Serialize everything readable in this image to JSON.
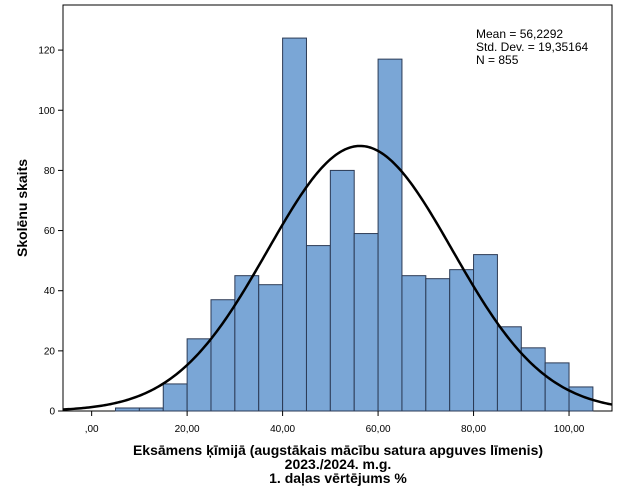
{
  "chart_data": {
    "type": "bar",
    "subtype": "histogram",
    "bin_width": 5,
    "bins": [
      {
        "start": 5,
        "end": 10,
        "count": 1
      },
      {
        "start": 10,
        "end": 15,
        "count": 1
      },
      {
        "start": 15,
        "end": 20,
        "count": 9
      },
      {
        "start": 20,
        "end": 25,
        "count": 24
      },
      {
        "start": 25,
        "end": 30,
        "count": 37
      },
      {
        "start": 30,
        "end": 35,
        "count": 45
      },
      {
        "start": 35,
        "end": 40,
        "count": 42
      },
      {
        "start": 40,
        "end": 45,
        "count": 124
      },
      {
        "start": 45,
        "end": 50,
        "count": 55
      },
      {
        "start": 50,
        "end": 55,
        "count": 80
      },
      {
        "start": 55,
        "end": 60,
        "count": 59
      },
      {
        "start": 60,
        "end": 65,
        "count": 117
      },
      {
        "start": 65,
        "end": 70,
        "count": 45
      },
      {
        "start": 70,
        "end": 75,
        "count": 44
      },
      {
        "start": 75,
        "end": 80,
        "count": 47
      },
      {
        "start": 80,
        "end": 85,
        "count": 52
      },
      {
        "start": 85,
        "end": 90,
        "count": 28
      },
      {
        "start": 90,
        "end": 95,
        "count": 21
      },
      {
        "start": 95,
        "end": 100,
        "count": 16
      },
      {
        "start": 100,
        "end": 105,
        "count": 8
      }
    ],
    "xlim": [
      -6,
      109
    ],
    "ylim": [
      0,
      135
    ],
    "x_ticks": [
      0,
      20,
      40,
      60,
      80,
      100
    ],
    "x_tick_labels": [
      ",00",
      "20,00",
      "40,00",
      "60,00",
      "80,00",
      "100,00"
    ],
    "y_ticks": [
      0,
      20,
      40,
      60,
      80,
      100,
      120
    ],
    "y_tick_labels": [
      "0",
      "20",
      "40",
      "60",
      "80",
      "100",
      "120"
    ],
    "xlabel_lines": [
      "Eksāmens ķīmijā (augstākais mācību satura apguves līmenis)",
      "2023./2024. m.g.",
      "1. daļas vērtējums %"
    ],
    "ylabel": "Skolēnu skaits",
    "normal_curve": {
      "mean": 56.2292,
      "std_dev": 19.35164,
      "n": 855
    },
    "stats_text": [
      "Mean = 56,2292",
      "Std. Dev. = 19,35164",
      "N = 855"
    ],
    "grid": false,
    "colors": {
      "bar_fill": "#7aa6d6",
      "bar_stroke": "#2b3a55",
      "curve": "#000000",
      "axis": "#000000"
    }
  }
}
